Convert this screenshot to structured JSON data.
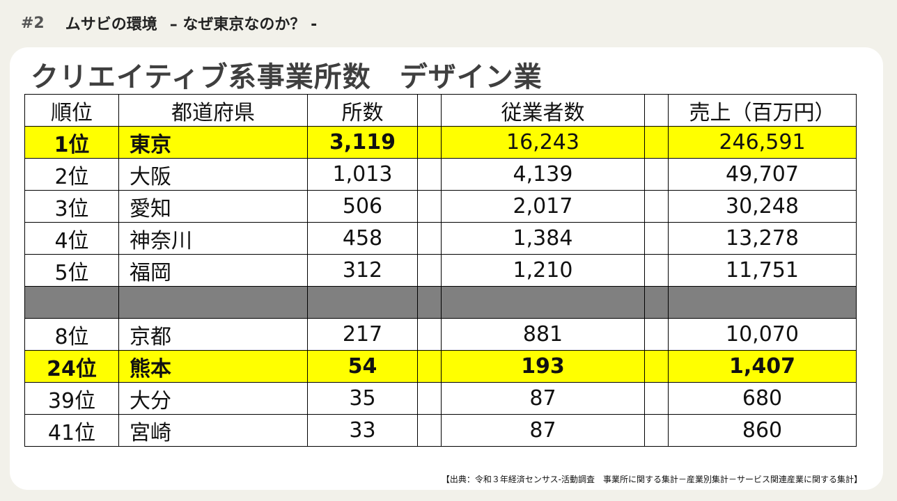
{
  "header": {
    "number": "#2",
    "title": "ムサビの環境",
    "subtitle": "– なぜ東京なのか？ -"
  },
  "slide_title": "クリエイティブ系事業所数　デザイン業",
  "table": {
    "columns": [
      "順位",
      "都道府県",
      "所数",
      "",
      "従業者数",
      "",
      "売上（百万円）"
    ],
    "rows": [
      {
        "rank": "1位",
        "pref": "東京",
        "offices": "3,119",
        "employees": "16,243",
        "sales": "246,591"
      },
      {
        "rank": "2位",
        "pref": "大阪",
        "offices": "1,013",
        "employees": "4,139",
        "sales": "49,707"
      },
      {
        "rank": "3位",
        "pref": "愛知",
        "offices": "506",
        "employees": "2,017",
        "sales": "30,248"
      },
      {
        "rank": "4位",
        "pref": "神奈川",
        "offices": "458",
        "employees": "1,384",
        "sales": "13,278"
      },
      {
        "rank": "5位",
        "pref": "福岡",
        "offices": "312",
        "employees": "1,210",
        "sales": "11,751"
      },
      {
        "rank": "8位",
        "pref": "京都",
        "offices": "217",
        "employees": "881",
        "sales": "10,070"
      },
      {
        "rank": "24位",
        "pref": "熊本",
        "offices": "54",
        "employees": "193",
        "sales": "1,407"
      },
      {
        "rank": "39位",
        "pref": "大分",
        "offices": "35",
        "employees": "87",
        "sales": "680"
      },
      {
        "rank": "41位",
        "pref": "宮崎",
        "offices": "33",
        "employees": "87",
        "sales": "860"
      }
    ]
  },
  "source": "【出典：令和３年経済センサス-活動調査　事業所に関する集計－産業別集計－サービス関連産業に関する集計】",
  "colors": {
    "highlight": "#ffff00",
    "gap_row": "#808080",
    "background": "#f2f1ea"
  }
}
